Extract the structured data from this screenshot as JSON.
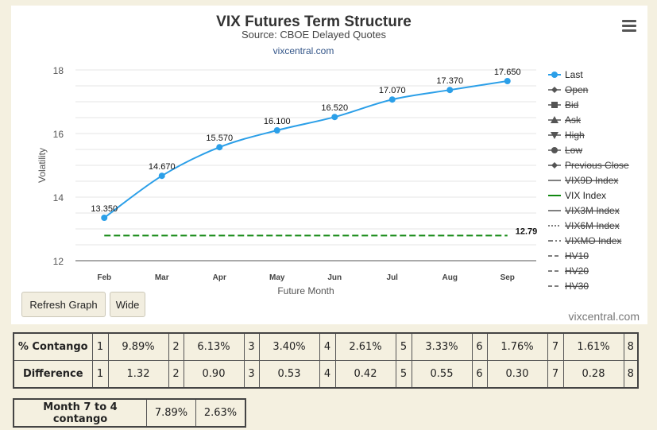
{
  "chart": {
    "title": "VIX Futures Term Structure",
    "subtitle": "Source: CBOE Delayed Quotes",
    "link": "vixcentral.com",
    "credit": "vixcentral.com",
    "refresh_label": "Refresh Graph",
    "wide_label": "Wide"
  },
  "legend": [
    {
      "label": "Last",
      "active": true,
      "color": "#2b9fe8",
      "marker": "circle",
      "line": "solid"
    },
    {
      "label": "Open",
      "active": false,
      "marker": "diamond",
      "line": "solid"
    },
    {
      "label": "Bid",
      "active": false,
      "marker": "square",
      "line": "solid"
    },
    {
      "label": "Ask",
      "active": false,
      "marker": "triangle",
      "line": "solid"
    },
    {
      "label": "High",
      "active": false,
      "marker": "triangle-down",
      "line": "solid"
    },
    {
      "label": "Low",
      "active": false,
      "marker": "circle",
      "line": "solid"
    },
    {
      "label": "Previous Close",
      "active": false,
      "marker": "diamond",
      "line": "solid"
    },
    {
      "label": "VIX9D Index",
      "active": false,
      "marker": "none",
      "line": "solid"
    },
    {
      "label": "VIX Index",
      "active": true,
      "color": "#118811",
      "marker": "none",
      "line": "solid"
    },
    {
      "label": "VIX3M Index",
      "active": false,
      "marker": "none",
      "line": "solid"
    },
    {
      "label": "VIX6M Index",
      "active": false,
      "marker": "none",
      "line": "dotted"
    },
    {
      "label": "VIXMO Index",
      "active": false,
      "marker": "none",
      "line": "dashdot"
    },
    {
      "label": "HV10",
      "active": false,
      "marker": "none",
      "line": "dashed"
    },
    {
      "label": "HV20",
      "active": false,
      "marker": "none",
      "line": "dashed"
    },
    {
      "label": "HV30",
      "active": false,
      "marker": "none",
      "line": "dashed"
    }
  ],
  "chart_data": {
    "type": "line",
    "title": "VIX Futures Term Structure",
    "subtitle": "Source: CBOE Delayed Quotes",
    "xlabel": "Future Month",
    "ylabel": "Volatility",
    "categories": [
      "Feb",
      "Mar",
      "Apr",
      "May",
      "Jun",
      "Jul",
      "Aug",
      "Sep"
    ],
    "ylim": [
      12,
      18
    ],
    "yticks": [
      12,
      14,
      16,
      18
    ],
    "grid": true,
    "legend_position": "right",
    "series": [
      {
        "name": "Last",
        "color": "#2b9fe8",
        "values": [
          13.35,
          14.67,
          15.57,
          16.1,
          16.52,
          17.07,
          17.37,
          17.65
        ],
        "labels": [
          "13.350",
          "14.670",
          "15.570",
          "16.100",
          "16.520",
          "17.070",
          "17.370",
          "17.650"
        ]
      },
      {
        "name": "VIX Index",
        "color": "#118811",
        "style": "dashed",
        "values": [
          12.79,
          12.79,
          12.79,
          12.79,
          12.79,
          12.79,
          12.79,
          12.79
        ],
        "end_label": "12.79"
      }
    ]
  },
  "contango_table": {
    "rows": [
      {
        "label": "% Contango",
        "cells": [
          "1",
          "9.89%",
          "2",
          "6.13%",
          "3",
          "3.40%",
          "4",
          "2.61%",
          "5",
          "3.33%",
          "6",
          "1.76%",
          "7",
          "1.61%",
          "8"
        ]
      },
      {
        "label": "Difference",
        "cells": [
          "1",
          "1.32",
          "2",
          "0.90",
          "3",
          "0.53",
          "4",
          "0.42",
          "5",
          "0.55",
          "6",
          "0.30",
          "7",
          "0.28",
          "8"
        ]
      }
    ]
  },
  "month_table": {
    "label": "Month 7 to 4 contango",
    "values": [
      "7.89%",
      "2.63%"
    ]
  }
}
